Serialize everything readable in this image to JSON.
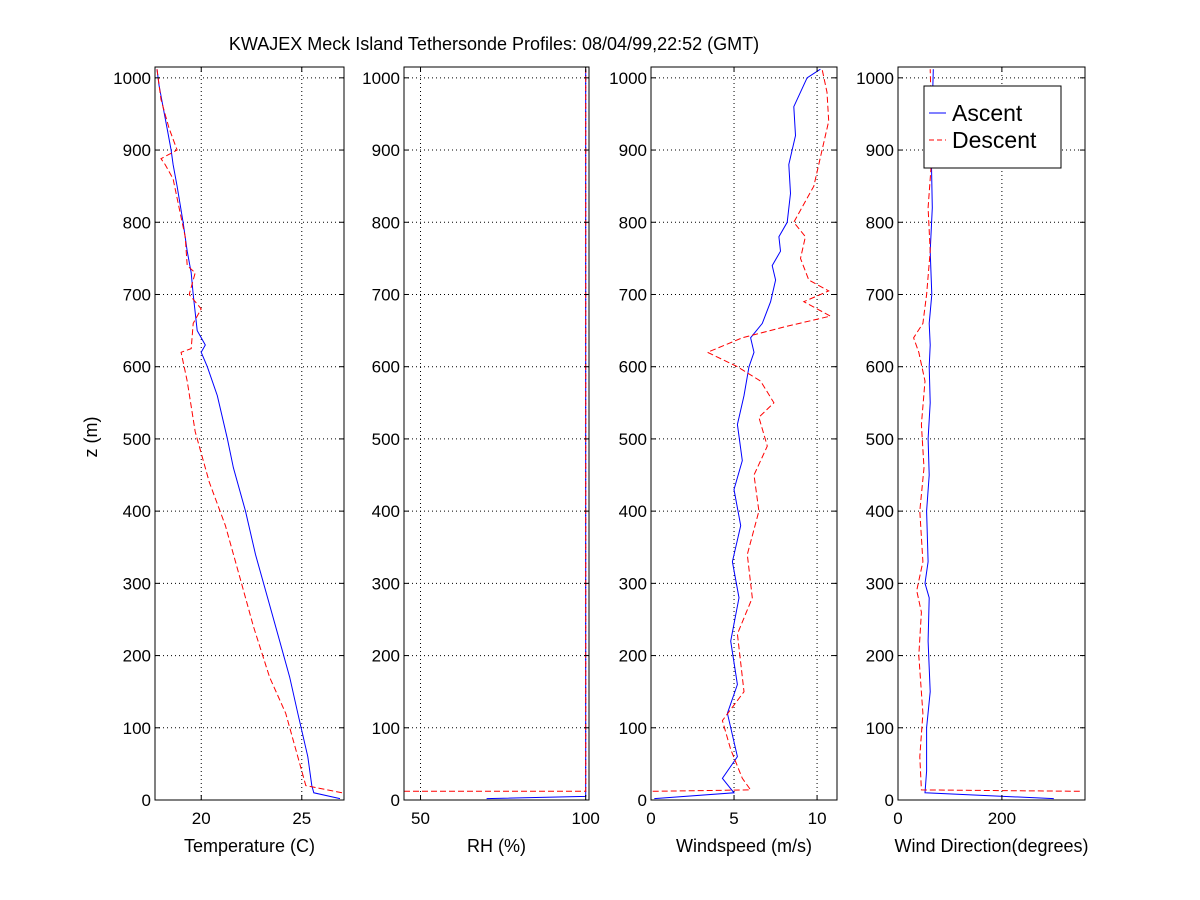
{
  "figure": {
    "title": "KWAJEX Meck Island Tethersonde Profiles: 08/04/99,22:52 (GMT)",
    "ylabel": "z (m)"
  },
  "legend": {
    "placement": "top-right of last panel",
    "items": [
      {
        "label": "Ascent",
        "color": "#0000ff",
        "style": "solid"
      },
      {
        "label": "Descent",
        "color": "#ff0000",
        "style": "dashed"
      }
    ]
  },
  "colors": {
    "ascent": "#0000ff",
    "descent": "#ff0000",
    "grid": "#000000",
    "background": "#ffffff"
  },
  "chart_data": [
    {
      "type": "line",
      "xlabel": "Temperature (C)",
      "ylabel": "z (m)",
      "xlim": [
        17.7,
        27.1
      ],
      "ylim": [
        0,
        1015
      ],
      "xticks": [
        20,
        25
      ],
      "yticks": [
        0,
        100,
        200,
        300,
        400,
        500,
        600,
        700,
        800,
        900,
        1000
      ],
      "grid": true,
      "series": [
        {
          "name": "Ascent",
          "color": "#0000ff",
          "dash": false,
          "x": [
            26.9,
            25.6,
            25.5,
            25.3,
            24.8,
            24.4,
            23.9,
            23.3,
            22.7,
            22.2,
            21.6,
            21.3,
            20.8,
            20.3,
            20.0,
            20.2,
            19.8,
            19.6,
            19.5,
            19.3,
            19.1,
            18.8,
            18.6,
            18.5,
            18.3,
            18.1,
            17.9,
            17.8
          ],
          "z": [
            2,
            10,
            20,
            60,
            120,
            170,
            220,
            280,
            340,
            400,
            460,
            500,
            560,
            600,
            620,
            630,
            650,
            700,
            730,
            760,
            800,
            850,
            880,
            900,
            930,
            960,
            990,
            1012
          ]
        },
        {
          "name": "Descent",
          "color": "#ff0000",
          "dash": true,
          "x": [
            27.0,
            25.2,
            24.8,
            24.2,
            23.4,
            22.6,
            22.0,
            21.2,
            20.4,
            19.7,
            19.3,
            19.0,
            19.5,
            19.6,
            20.0,
            19.4,
            19.7,
            19.3,
            19.2,
            18.9,
            18.6,
            18.2,
            18.0,
            18.8,
            18.4,
            18.0,
            17.8
          ],
          "z": [
            10,
            20,
            60,
            120,
            170,
            240,
            300,
            380,
            440,
            510,
            580,
            620,
            625,
            660,
            680,
            700,
            730,
            740,
            780,
            820,
            860,
            880,
            888,
            900,
            930,
            970,
            1012
          ]
        }
      ]
    },
    {
      "type": "line",
      "xlabel": "RH (%)",
      "ylabel": "",
      "xlim": [
        45,
        101
      ],
      "ylim": [
        0,
        1015
      ],
      "xticks": [
        50,
        100
      ],
      "yticks": [
        0,
        100,
        200,
        300,
        400,
        500,
        600,
        700,
        800,
        900,
        1000
      ],
      "grid": true,
      "series": [
        {
          "name": "Ascent",
          "color": "#0000ff",
          "dash": false,
          "x": [
            70,
            100,
            100,
            100,
            100
          ],
          "z": [
            2,
            5,
            10,
            500,
            1012
          ]
        },
        {
          "name": "Descent",
          "color": "#ff0000",
          "dash": true,
          "x": [
            45,
            100,
            100,
            100
          ],
          "z": [
            12,
            12,
            500,
            1012
          ]
        }
      ]
    },
    {
      "type": "line",
      "xlabel": "Windspeed (m/s)",
      "ylabel": "",
      "xlim": [
        0,
        11.2
      ],
      "ylim": [
        0,
        1015
      ],
      "xticks": [
        0,
        5,
        10
      ],
      "yticks": [
        0,
        100,
        200,
        300,
        400,
        500,
        600,
        700,
        800,
        900,
        1000
      ],
      "grid": true,
      "series": [
        {
          "name": "Ascent",
          "color": "#0000ff",
          "dash": false,
          "x": [
            0.2,
            5.0,
            4.3,
            5.2,
            4.6,
            5.2,
            4.8,
            5.3,
            4.9,
            5.4,
            5.0,
            5.5,
            5.2,
            5.6,
            5.9,
            6.2,
            6.0,
            6.7,
            7.2,
            7.5,
            7.3,
            7.8,
            7.7,
            8.2,
            8.4,
            8.3,
            8.7,
            8.6,
            9.4,
            10.2
          ],
          "z": [
            2,
            10,
            30,
            60,
            120,
            160,
            220,
            280,
            330,
            380,
            430,
            470,
            520,
            560,
            600,
            620,
            640,
            660,
            690,
            720,
            740,
            760,
            780,
            800,
            840,
            880,
            920,
            960,
            1000,
            1012
          ]
        },
        {
          "name": "Descent",
          "color": "#ff0000",
          "dash": true,
          "x": [
            0.1,
            6.0,
            5.5,
            4.8,
            4.3,
            5.6,
            5.2,
            6.1,
            5.8,
            6.5,
            6.2,
            7.0,
            6.5,
            7.4,
            6.6,
            5.2,
            3.4,
            5.5,
            8.0,
            10.8,
            9.2,
            10.7,
            9.5,
            9.0,
            9.3,
            8.6,
            9.8,
            10.2,
            10.7,
            10.6,
            10.3
          ],
          "z": [
            12,
            14,
            30,
            70,
            110,
            150,
            230,
            280,
            340,
            400,
            450,
            490,
            530,
            550,
            580,
            600,
            620,
            640,
            655,
            670,
            690,
            705,
            720,
            750,
            780,
            800,
            850,
            890,
            940,
            980,
            1012
          ]
        }
      ]
    },
    {
      "type": "line",
      "xlabel": "Wind Direction(degrees)",
      "ylabel": "",
      "xlim": [
        0,
        360
      ],
      "ylim": [
        0,
        1015
      ],
      "xticks": [
        0,
        200
      ],
      "yticks": [
        0,
        100,
        200,
        300,
        400,
        500,
        600,
        700,
        800,
        900,
        1000
      ],
      "grid": true,
      "series": [
        {
          "name": "Ascent",
          "color": "#0000ff",
          "dash": false,
          "x": [
            300,
            52,
            55,
            55,
            62,
            58,
            60,
            52,
            58,
            55,
            60,
            58,
            62,
            60,
            62,
            60,
            65,
            62,
            66,
            64,
            66,
            68
          ],
          "z": [
            2,
            10,
            40,
            100,
            150,
            220,
            280,
            300,
            330,
            400,
            450,
            500,
            550,
            600,
            630,
            660,
            700,
            760,
            820,
            900,
            960,
            1012
          ]
        },
        {
          "name": "Descent",
          "color": "#ff0000",
          "dash": true,
          "x": [
            350,
            45,
            42,
            48,
            40,
            45,
            36,
            48,
            42,
            50,
            45,
            52,
            40,
            30,
            48,
            55,
            62,
            58,
            66,
            62
          ],
          "z": [
            12,
            14,
            60,
            120,
            200,
            260,
            290,
            330,
            400,
            460,
            520,
            580,
            620,
            640,
            660,
            700,
            760,
            820,
            900,
            1012
          ]
        }
      ]
    }
  ]
}
